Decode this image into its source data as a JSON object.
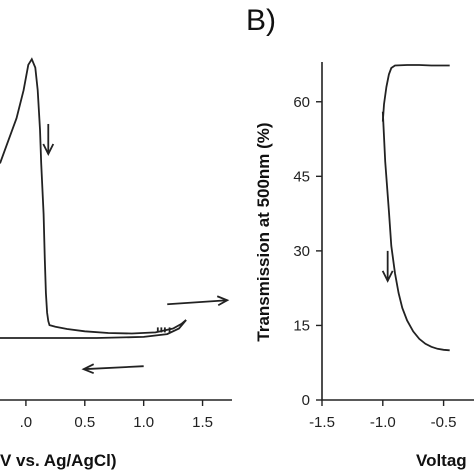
{
  "chart_data": [
    {
      "type": "line",
      "panel_label": "",
      "xlabel": "V vs. Ag/AgCl)",
      "ylabel": "",
      "xlim": [
        -0.22,
        1.75
      ],
      "ylim": [
        -1.0,
        5.0
      ],
      "x_ticks": [
        0.0,
        0.5,
        1.0,
        1.5
      ],
      "x_tick_labels": [
        ".0",
        "0.5",
        "1.0",
        "1.5"
      ],
      "grid": false,
      "series": [
        {
          "x": [
            -0.22,
            -0.15,
            -0.08,
            -0.02,
            0.02,
            0.05,
            0.08,
            0.1,
            0.12,
            0.13,
            0.15,
            0.16,
            0.17,
            0.18,
            0.19,
            0.2,
            0.25,
            0.35,
            0.5,
            0.7,
            0.9,
            1.1,
            1.25,
            1.32,
            1.36
          ],
          "y": [
            3.2,
            3.6,
            4.0,
            4.5,
            4.95,
            5.05,
            4.9,
            4.5,
            3.8,
            3.2,
            2.3,
            1.5,
            0.9,
            0.55,
            0.4,
            0.33,
            0.3,
            0.26,
            0.22,
            0.19,
            0.18,
            0.2,
            0.27,
            0.35,
            0.42
          ]
        },
        {
          "x": [
            -0.22,
            0.2,
            0.6,
            1.0,
            1.2,
            1.3,
            1.36
          ],
          "y": [
            0.1,
            0.1,
            0.1,
            0.12,
            0.17,
            0.27,
            0.42
          ]
        }
      ],
      "annotations": [
        {
          "text": "arrow-down",
          "x": 0.19,
          "y": 3.9
        },
        {
          "text": "arrow-right",
          "x": 1.2,
          "y": 0.7
        },
        {
          "text": "arrow-left",
          "x": 1.0,
          "y": -0.4
        }
      ]
    },
    {
      "type": "line",
      "panel_label": "B)",
      "xlabel": "Voltag",
      "ylabel": "Transmission at 500nm (%)",
      "xlim": [
        -1.5,
        -0.25
      ],
      "ylim": [
        0,
        68
      ],
      "x_ticks": [
        -1.5,
        -1.0,
        -0.5
      ],
      "x_tick_labels": [
        "-1.5",
        "-1.0",
        "-0.5"
      ],
      "y_ticks": [
        0,
        15,
        30,
        45,
        60
      ],
      "y_tick_labels": [
        "0",
        "15",
        "30",
        "45",
        "60"
      ],
      "grid": false,
      "series": [
        {
          "x": [
            -1.0,
            -0.98,
            -0.95,
            -0.93,
            -0.9,
            -0.87,
            -0.84,
            -0.8,
            -0.75,
            -0.7,
            -0.65,
            -0.6,
            -0.55,
            -0.5,
            -0.45
          ],
          "y": [
            58.0,
            48.0,
            38.0,
            31.0,
            25.5,
            21.5,
            18.5,
            16.0,
            13.8,
            12.3,
            11.3,
            10.7,
            10.3,
            10.1,
            10.0
          ]
        },
        {
          "x": [
            -1.0,
            -0.99,
            -0.97,
            -0.95,
            -0.93,
            -0.9,
            -0.8,
            -0.7,
            -0.6,
            -0.5,
            -0.45
          ],
          "y": [
            56.0,
            59.5,
            63.0,
            65.5,
            66.8,
            67.3,
            67.4,
            67.4,
            67.3,
            67.3,
            67.3
          ]
        }
      ],
      "annotations": [
        {
          "text": "arrow-down",
          "x": -0.96,
          "y": 30
        }
      ]
    }
  ]
}
